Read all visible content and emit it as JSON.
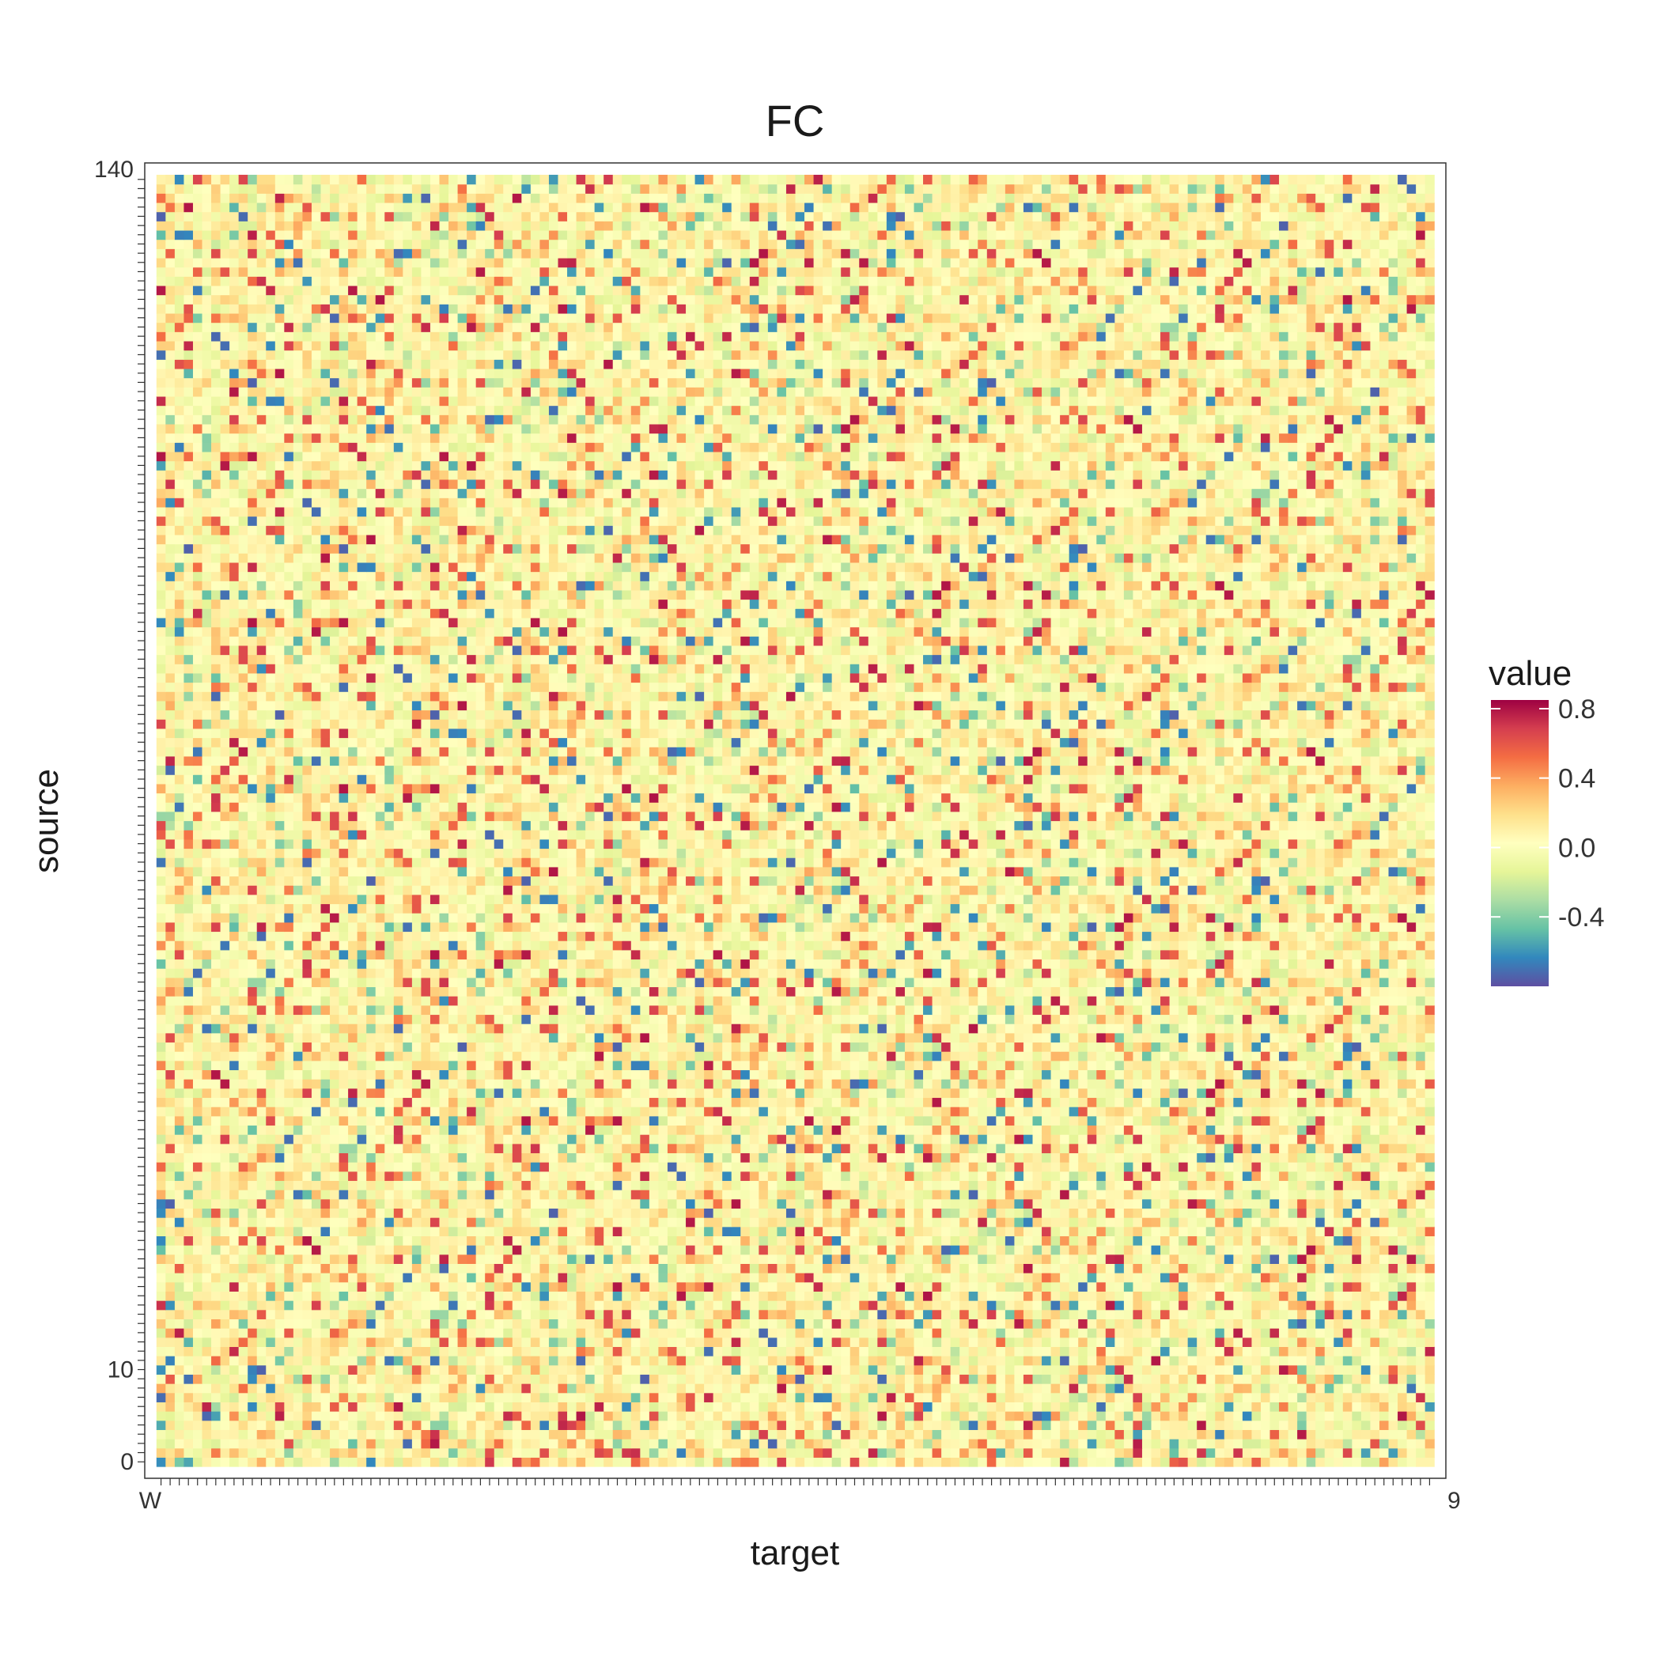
{
  "chart_data": {
    "type": "heatmap",
    "title": "FC",
    "xlabel": "target",
    "ylabel": "source",
    "x_first_label": "W",
    "x_last_label": "9",
    "y_tick_labels": [
      "0",
      "10",
      "140"
    ],
    "rows": 140,
    "cols": 140,
    "color_scale": {
      "name": "Spectral",
      "colors": [
        "#5e4fa2",
        "#3288bd",
        "#66c2a5",
        "#abdda4",
        "#e6f598",
        "#ffffbf",
        "#fee08b",
        "#fdae61",
        "#f46d43",
        "#d53e4f",
        "#9e0142"
      ],
      "min": -0.8,
      "max": 0.85
    },
    "legend": {
      "title": "value",
      "position": "right",
      "ticks": [
        {
          "value": 0.8,
          "label": "0.8"
        },
        {
          "value": 0.4,
          "label": "0.4"
        },
        {
          "value": 0.0,
          "label": "0.0"
        },
        {
          "value": -0.4,
          "label": "-0.4"
        }
      ]
    },
    "grid": false
  }
}
